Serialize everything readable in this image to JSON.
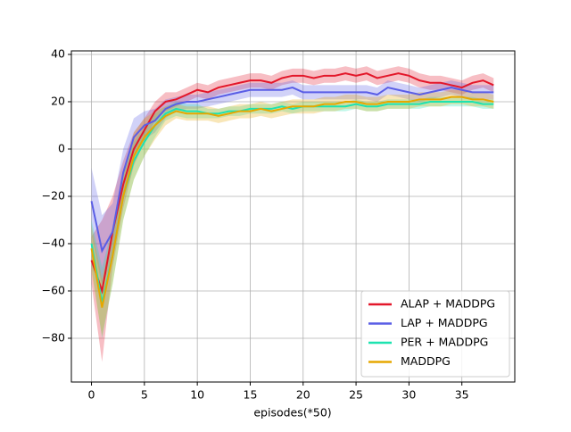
{
  "chart_data": {
    "type": "line",
    "x_label": "episodes(*50)",
    "x": [
      0,
      1,
      2,
      3,
      4,
      5,
      6,
      7,
      8,
      9,
      10,
      11,
      12,
      13,
      14,
      15,
      16,
      17,
      18,
      19,
      20,
      21,
      22,
      23,
      24,
      25,
      26,
      27,
      28,
      29,
      30,
      31,
      32,
      33,
      34,
      35,
      36,
      37,
      38
    ],
    "xlim": [
      -1.9,
      40
    ],
    "ylim": [
      -98.5,
      41.5
    ],
    "xticks": [
      0,
      5,
      10,
      15,
      20,
      25,
      30,
      35
    ],
    "yticks": [
      {
        "value": -80,
        "label": "−80"
      },
      {
        "value": -60,
        "label": "−60"
      },
      {
        "value": -40,
        "label": "−40"
      },
      {
        "value": -20,
        "label": "−20"
      },
      0,
      20,
      40
    ],
    "grid": true,
    "legend": "lower right",
    "series": [
      {
        "name": "ALAP + MADDPG",
        "color": "#e3172a",
        "values": [
          -47,
          -60,
          -35,
          -15,
          0,
          8,
          16,
          20,
          21,
          23,
          25,
          24,
          26,
          27,
          28,
          29,
          29,
          28,
          30,
          31,
          31,
          30,
          31,
          31,
          32,
          31,
          32,
          30,
          31,
          32,
          31,
          29,
          28,
          28,
          27,
          26,
          28,
          29,
          27
        ],
        "errors": [
          10,
          30,
          15,
          10,
          7,
          5,
          4,
          4,
          3,
          3,
          3,
          3,
          3,
          3,
          3,
          3,
          3,
          3,
          3,
          3,
          3,
          3,
          3,
          3,
          3,
          3,
          3,
          3,
          3,
          3,
          3,
          3,
          3,
          3,
          3,
          3,
          3,
          3,
          3
        ]
      },
      {
        "name": "LAP + MADDPG",
        "color": "#5a5ee6",
        "values": [
          -22,
          -43,
          -35,
          -10,
          5,
          10,
          12,
          17,
          19,
          20,
          20,
          21,
          22,
          23,
          24,
          25,
          25,
          25,
          25,
          26,
          24,
          24,
          24,
          24,
          24,
          24,
          24,
          23,
          26,
          25,
          24,
          23,
          24,
          25,
          26,
          25,
          24,
          24,
          24
        ],
        "errors": [
          14,
          15,
          12,
          10,
          8,
          6,
          5,
          4,
          3,
          3,
          3,
          3,
          3,
          3,
          3,
          3,
          3,
          3,
          3,
          3,
          3,
          3,
          3,
          3,
          3,
          3,
          3,
          3,
          3,
          3,
          3,
          3,
          3,
          3,
          3,
          3,
          3,
          3,
          3
        ]
      },
      {
        "name": "PER + MADDPG",
        "color": "#1de3b0",
        "values": [
          -40,
          -65,
          -45,
          -20,
          -5,
          3,
          10,
          15,
          17,
          16,
          16,
          15,
          15,
          16,
          16,
          17,
          17,
          17,
          18,
          17,
          18,
          18,
          18,
          18,
          18,
          19,
          18,
          18,
          19,
          19,
          19,
          19,
          20,
          20,
          20,
          20,
          20,
          19,
          19
        ],
        "errors": [
          10,
          15,
          12,
          10,
          8,
          6,
          5,
          3,
          3,
          3,
          3,
          2,
          2,
          2,
          2,
          2,
          2,
          2,
          2,
          2,
          2,
          2,
          2,
          2,
          2,
          2,
          2,
          2,
          2,
          2,
          2,
          2,
          2,
          2,
          2,
          2,
          2,
          2,
          2
        ]
      },
      {
        "name": "MADDPG",
        "color": "#e6a700",
        "values": [
          -42,
          -67,
          -45,
          -20,
          -3,
          5,
          10,
          14,
          16,
          15,
          15,
          15,
          14,
          15,
          16,
          16,
          17,
          16,
          17,
          18,
          18,
          18,
          19,
          19,
          20,
          20,
          19,
          19,
          20,
          20,
          20,
          21,
          21,
          21,
          22,
          22,
          21,
          21,
          20
        ],
        "errors": [
          10,
          12,
          12,
          10,
          10,
          8,
          6,
          4,
          3,
          3,
          3,
          3,
          3,
          3,
          3,
          3,
          3,
          3,
          3,
          3,
          3,
          3,
          3,
          3,
          3,
          3,
          3,
          3,
          3,
          3,
          3,
          3,
          3,
          3,
          3,
          3,
          3,
          3,
          3
        ]
      }
    ]
  }
}
